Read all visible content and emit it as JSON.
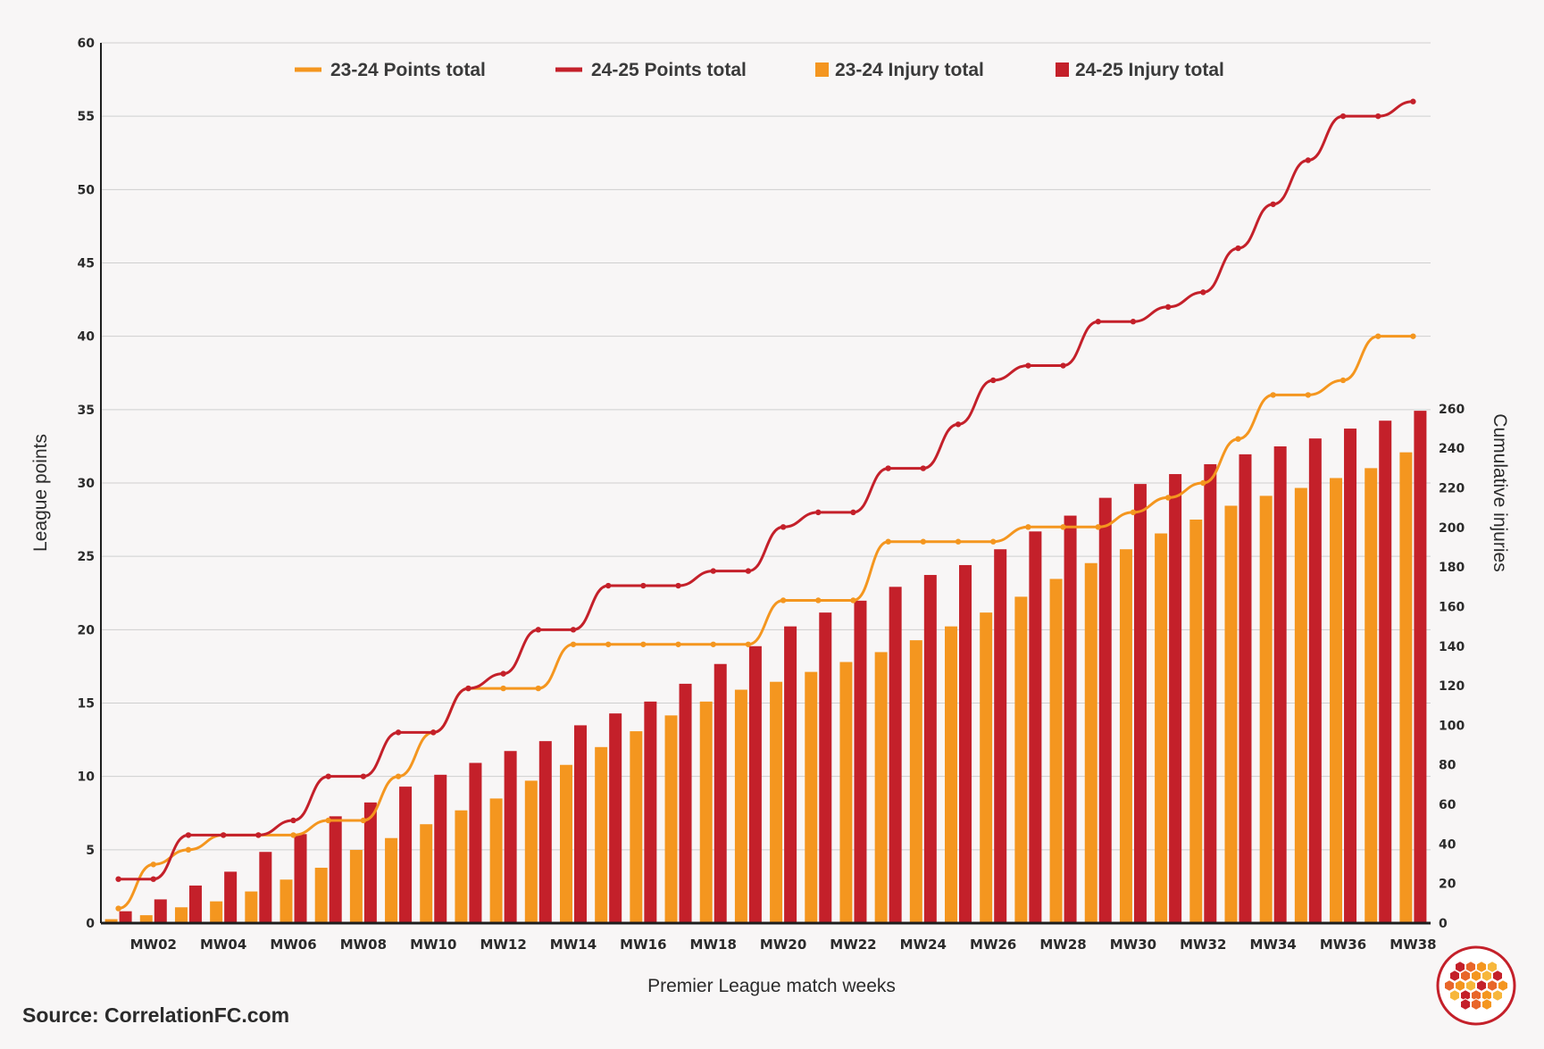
{
  "source": "Source: CorrelationFC.com",
  "colors": {
    "orange": "#f4961f",
    "red": "#c4202a",
    "grid": "#cfcfcf",
    "axis": "#1e1e1e",
    "background": "#f8f6f6"
  },
  "chart_data": {
    "type": "bar+line",
    "xlabel": "Premier League match weeks",
    "ylabel": "League points",
    "y2label": "Cumulative injuries",
    "ylim": [
      0,
      60
    ],
    "y2lim": [
      0,
      445
    ],
    "yticks": [
      0,
      5,
      10,
      15,
      20,
      25,
      30,
      35,
      40,
      45,
      50,
      55,
      60
    ],
    "y2ticks": [
      0,
      20,
      40,
      60,
      80,
      100,
      120,
      140,
      160,
      180,
      200,
      220,
      240,
      260
    ],
    "grid": true,
    "legend_position": "top",
    "categories": [
      "MW01",
      "MW02",
      "MW03",
      "MW04",
      "MW05",
      "MW06",
      "MW07",
      "MW08",
      "MW09",
      "MW10",
      "MW11",
      "MW12",
      "MW13",
      "MW14",
      "MW15",
      "MW16",
      "MW17",
      "MW18",
      "MW19",
      "MW20",
      "MW21",
      "MW22",
      "MW23",
      "MW24",
      "MW25",
      "MW26",
      "MW27",
      "MW28",
      "MW29",
      "MW30",
      "MW31",
      "MW32",
      "MW33",
      "MW34",
      "MW35",
      "MW36",
      "MW37",
      "MW38"
    ],
    "xtick_labels": [
      "MW02",
      "MW04",
      "MW06",
      "MW08",
      "MW10",
      "MW12",
      "MW14",
      "MW16",
      "MW18",
      "MW20",
      "MW22",
      "MW24",
      "MW26",
      "MW28",
      "MW30",
      "MW32",
      "MW34",
      "MW36",
      "MW38"
    ],
    "series": [
      {
        "name": "23-24 Points total",
        "type": "line",
        "axis": "left",
        "color": "#f4961f",
        "values": [
          1,
          4,
          5,
          6,
          6,
          6,
          7,
          7,
          10,
          13,
          16,
          16,
          16,
          19,
          19,
          19,
          19,
          19,
          19,
          22,
          22,
          22,
          26,
          26,
          26,
          26,
          27,
          27,
          27,
          28,
          29,
          30,
          33,
          36,
          36,
          37,
          40,
          40
        ]
      },
      {
        "name": "24-25 Points total",
        "type": "line",
        "axis": "left",
        "color": "#c4202a",
        "values": [
          3,
          3,
          6,
          6,
          6,
          7,
          10,
          10,
          13,
          13,
          16,
          17,
          20,
          20,
          23,
          23,
          23,
          24,
          24,
          27,
          28,
          28,
          31,
          31,
          34,
          37,
          38,
          38,
          41,
          41,
          42,
          43,
          46,
          49,
          52,
          55,
          55,
          56
        ]
      },
      {
        "name": "23-24 Injury total",
        "type": "bar",
        "axis": "right",
        "color": "#f4961f",
        "values": [
          2,
          4,
          8,
          11,
          16,
          22,
          28,
          37,
          43,
          50,
          57,
          63,
          72,
          80,
          89,
          97,
          105,
          112,
          118,
          122,
          127,
          132,
          137,
          143,
          150,
          157,
          165,
          174,
          182,
          189,
          197,
          204,
          211,
          216,
          220,
          225,
          230,
          238
        ]
      },
      {
        "name": "24-25 Injury total",
        "type": "bar",
        "axis": "right",
        "color": "#c4202a",
        "values": [
          6,
          12,
          19,
          26,
          36,
          45,
          54,
          61,
          69,
          75,
          81,
          87,
          92,
          100,
          106,
          112,
          121,
          131,
          140,
          150,
          157,
          163,
          170,
          176,
          181,
          189,
          198,
          206,
          215,
          222,
          227,
          232,
          237,
          241,
          245,
          250,
          254,
          259
        ]
      }
    ]
  }
}
